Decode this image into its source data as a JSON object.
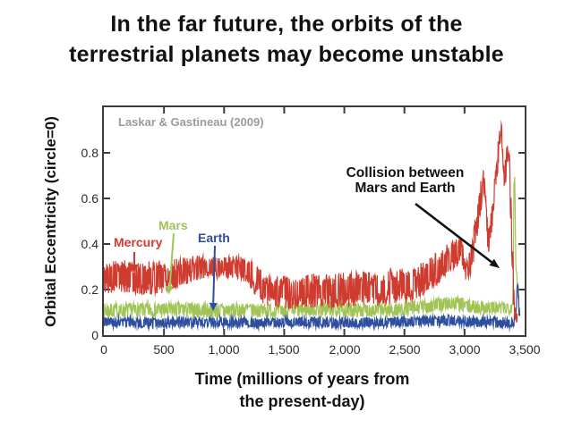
{
  "title": {
    "line1": "In the far future, the orbits of the",
    "line2": "terrestrial planets may become unstable"
  },
  "colors": {
    "mercury": "#cf3c2f",
    "mars": "#a0c455",
    "earth": "#2d4f9e",
    "frame": "#3b3b3b",
    "credit": "#9b9b9b",
    "annotation": "#111111"
  },
  "chart_data": {
    "type": "line",
    "credit": "Laskar & Gastineau (2009)",
    "ylabel": "Orbital Eccentricity (circle=0)",
    "xlabel_line1": "Time (millions of years from",
    "xlabel_line2": "the present-day)",
    "x_ticks": [
      "0",
      "500",
      "1,000",
      "1,500",
      "2,000",
      "2,500",
      "3,000",
      "3,500"
    ],
    "x_tick_values": [
      0,
      500,
      1000,
      1500,
      2000,
      2500,
      3000,
      3500
    ],
    "y_ticks": [
      "0",
      "0.2",
      "0.4",
      "0.6",
      "0.8"
    ],
    "y_tick_values": [
      0,
      0.2,
      0.4,
      0.6,
      0.8
    ],
    "xlim": [
      0,
      3500
    ],
    "ylim": [
      0,
      1.0
    ],
    "grid": false,
    "legend_position": "inline-labels",
    "annotations": {
      "collision_line1": "Collision between",
      "collision_line2": "Mars and Earth"
    },
    "series": [
      {
        "name": "Mercury",
        "color": "#cf3c2f",
        "description": "noisy band; values are [time_Myr, min_eccentricity, max_eccentricity]",
        "envelope": [
          [
            0,
            0.18,
            0.32
          ],
          [
            150,
            0.19,
            0.33
          ],
          [
            300,
            0.17,
            0.32
          ],
          [
            450,
            0.18,
            0.33
          ],
          [
            600,
            0.2,
            0.335
          ],
          [
            750,
            0.24,
            0.35
          ],
          [
            900,
            0.25,
            0.35
          ],
          [
            1050,
            0.25,
            0.35
          ],
          [
            1150,
            0.24,
            0.345
          ],
          [
            1230,
            0.2,
            0.33
          ],
          [
            1300,
            0.14,
            0.29
          ],
          [
            1400,
            0.12,
            0.26
          ],
          [
            1550,
            0.11,
            0.26
          ],
          [
            1700,
            0.12,
            0.27
          ],
          [
            1850,
            0.12,
            0.27
          ],
          [
            2000,
            0.12,
            0.275
          ],
          [
            2150,
            0.13,
            0.28
          ],
          [
            2300,
            0.13,
            0.28
          ],
          [
            2450,
            0.14,
            0.29
          ],
          [
            2600,
            0.16,
            0.31
          ],
          [
            2720,
            0.19,
            0.34
          ],
          [
            2820,
            0.24,
            0.39
          ],
          [
            2900,
            0.28,
            0.42
          ],
          [
            2970,
            0.31,
            0.44
          ],
          [
            3020,
            0.21,
            0.33
          ],
          [
            3070,
            0.3,
            0.44
          ],
          [
            3120,
            0.48,
            0.65
          ],
          [
            3160,
            0.6,
            0.74
          ],
          [
            3200,
            0.32,
            0.46
          ],
          [
            3240,
            0.5,
            0.64
          ],
          [
            3280,
            0.72,
            0.86
          ],
          [
            3305,
            0.88,
            0.96
          ],
          [
            3330,
            0.62,
            0.74
          ],
          [
            3355,
            0.72,
            0.85
          ],
          [
            3375,
            0.62,
            0.8
          ],
          [
            3395,
            0.3,
            0.55
          ],
          [
            3410,
            0.1,
            0.25
          ],
          [
            3425,
            0.05,
            0.12
          ],
          [
            3440,
            0.05,
            0.1
          ]
        ]
      },
      {
        "name": "Mars",
        "color": "#a0c455",
        "description": "noisy band; values are [time_Myr, min_eccentricity, max_eccentricity]",
        "envelope": [
          [
            0,
            0.075,
            0.14
          ],
          [
            300,
            0.08,
            0.14
          ],
          [
            600,
            0.08,
            0.145
          ],
          [
            900,
            0.075,
            0.14
          ],
          [
            1200,
            0.08,
            0.14
          ],
          [
            1500,
            0.08,
            0.135
          ],
          [
            1800,
            0.085,
            0.145
          ],
          [
            2100,
            0.08,
            0.14
          ],
          [
            2400,
            0.08,
            0.14
          ],
          [
            2600,
            0.09,
            0.15
          ],
          [
            2750,
            0.1,
            0.165
          ],
          [
            2900,
            0.11,
            0.17
          ],
          [
            3050,
            0.095,
            0.155
          ],
          [
            3200,
            0.09,
            0.15
          ],
          [
            3300,
            0.09,
            0.145
          ],
          [
            3380,
            0.095,
            0.15
          ],
          [
            3400,
            0.1,
            0.15
          ],
          [
            3412,
            0.55,
            0.75
          ],
          [
            3418,
            0.7,
            0.76
          ],
          [
            3428,
            0.18,
            0.3
          ],
          [
            3450,
            0.15,
            0.22
          ]
        ]
      },
      {
        "name": "Earth",
        "color": "#2d4f9e",
        "description": "noisy band; values are [time_Myr, min_eccentricity, max_eccentricity]",
        "envelope": [
          [
            0,
            0.035,
            0.08
          ],
          [
            400,
            0.03,
            0.075
          ],
          [
            800,
            0.035,
            0.08
          ],
          [
            1200,
            0.03,
            0.075
          ],
          [
            1600,
            0.035,
            0.08
          ],
          [
            2000,
            0.03,
            0.078
          ],
          [
            2400,
            0.035,
            0.08
          ],
          [
            2800,
            0.04,
            0.088
          ],
          [
            3100,
            0.035,
            0.085
          ],
          [
            3300,
            0.03,
            0.08
          ],
          [
            3380,
            0.028,
            0.075
          ],
          [
            3420,
            0.04,
            0.09
          ],
          [
            3435,
            0.12,
            0.2
          ],
          [
            3444,
            0.2,
            0.26
          ],
          [
            3452,
            0.08,
            0.16
          ],
          [
            3460,
            0.06,
            0.12
          ]
        ]
      }
    ]
  }
}
